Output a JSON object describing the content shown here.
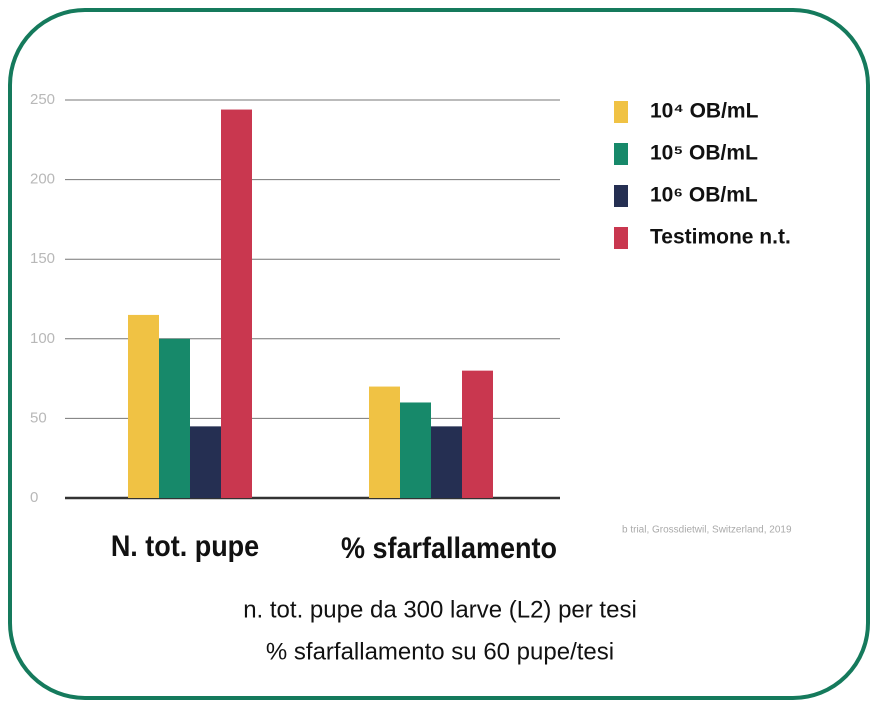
{
  "chart_data": {
    "type": "bar",
    "categories": [
      "N. tot. pupe",
      "% sfarfallamento"
    ],
    "series": [
      {
        "name": "10⁴ OB/mL",
        "color": "#f0c244",
        "values": [
          115,
          70
        ]
      },
      {
        "name": "10⁵ OB/mL",
        "color": "#17896a",
        "values": [
          100,
          60
        ]
      },
      {
        "name": "10⁶ OB/mL",
        "color": "#252f52",
        "values": [
          45,
          45
        ]
      },
      {
        "name": "Testimone n.t.",
        "color": "#c9374f",
        "values": [
          244,
          80
        ]
      }
    ],
    "ylim": [
      0,
      250
    ],
    "yticks": [
      0,
      50,
      100,
      150,
      200,
      250
    ],
    "grid": true,
    "legend": "right",
    "source": "b trial, Grossdietwil, Switzerland, 2019",
    "notes": [
      "n. tot. pupe da 300 larve (L2) per tesi",
      "% sfarfallamento su 60 pupe/tesi"
    ]
  }
}
